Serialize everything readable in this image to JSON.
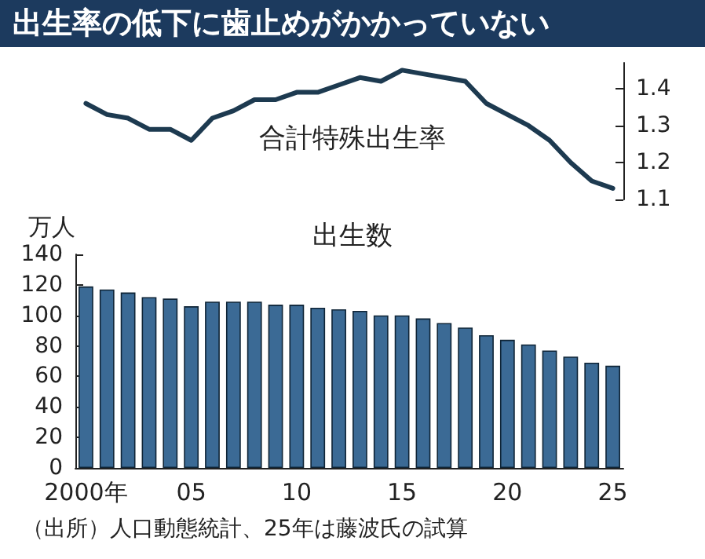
{
  "chart_data": [
    {
      "type": "line",
      "title": "出生率の低下に歯止めがかかっていない",
      "categories": [
        null,
        null,
        null,
        null,
        null,
        null,
        null,
        null,
        null,
        null,
        null,
        null,
        null,
        null,
        null,
        null,
        null,
        null,
        null,
        null,
        null,
        null,
        null,
        null,
        null,
        null
      ],
      "series": [
        {
          "name": "合計特殊出生率",
          "color": "#1d3a50",
          "values": [
            1.36,
            1.33,
            1.32,
            1.29,
            1.29,
            1.26,
            1.32,
            1.34,
            1.37,
            1.37,
            1.39,
            1.39,
            1.41,
            1.43,
            1.42,
            1.45,
            1.44,
            1.43,
            1.42,
            1.36,
            1.33,
            1.3,
            1.26,
            1.2,
            1.15,
            1.13
          ]
        }
      ],
      "ylim": [
        1.1,
        1.47
      ],
      "yticks": [
        1.1,
        1.2,
        1.3,
        1.4
      ],
      "tick_labels": "y",
      "grid": false,
      "legend": false,
      "marker": "none",
      "line_style": "solid"
    },
    {
      "type": "bar",
      "ylabel": "万人",
      "categories": [
        "2000年",
        null,
        null,
        null,
        null,
        "05",
        null,
        null,
        null,
        null,
        "10",
        null,
        null,
        null,
        null,
        "15",
        null,
        null,
        null,
        null,
        "20",
        null,
        null,
        null,
        null,
        "25"
      ],
      "series": [
        {
          "name": "出生数",
          "color": "#3b6a95",
          "values": [
            119,
            117,
            115,
            112,
            111,
            106,
            109,
            109,
            109,
            107,
            107,
            105,
            104,
            103,
            100,
            100,
            98,
            95,
            92,
            87,
            84,
            81,
            77,
            73,
            69,
            67
          ]
        }
      ],
      "ylim": [
        0,
        140
      ],
      "yticks": [
        0,
        20,
        40,
        60,
        80,
        100,
        120,
        140
      ],
      "grid": false,
      "legend": false,
      "annotations": [
        "（出所）人口動態統計、25年は藤波氏の試算"
      ]
    }
  ]
}
